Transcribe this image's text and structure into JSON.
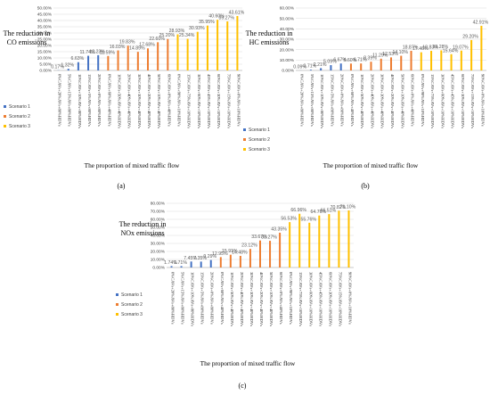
{
  "colors": {
    "scenario1": "#4472C4",
    "scenario2": "#ED7D31",
    "scenario3": "#FFC000",
    "grid": "#d9d9d9",
    "axis": "#bfbfbf"
  },
  "panel_labels": [
    "(a)",
    "(b)",
    "(c)"
  ],
  "chart_data": [
    {
      "type": "bar",
      "panel": "(a)",
      "ylabel": [
        "The reduction in",
        "CO emissions"
      ],
      "xlabel": "The proportion of mixed traffic flow",
      "ylim": [
        0,
        50
      ],
      "yticks": [
        "0.00%",
        "5.00%",
        "10.00%",
        "15.00%",
        "20.00%",
        "25.00%",
        "30.00%",
        "35.00%",
        "40.00%",
        "45.00%",
        "50.00%"
      ],
      "grid": true,
      "legend": "left",
      "legend_labels": [
        "Scenario 1",
        "Scenario 2",
        "Scenario 3"
      ],
      "categories": [
        "0%CAVs+20%AVs+80%HDVs",
        "5%CAVs+15%AVs+80%HDVs",
        "10%CAVs+10%AVs+80%HDVs",
        "15%CAVs+5%AVs+80%HDVs",
        "20%CAVs+0%AVs+80%HDVs",
        "0%CAVs+60%AVs+40%HDVs",
        "10%CAVs+50%AVs+40%HDVs",
        "20%CAVs+40%AVs+40%HDVs",
        "30%CAVs+30%AVs+40%HDVs",
        "40%CAVs+20%AVs+40%HDVs",
        "50%CAVs+10%AVs+40%HDVs",
        "60%CAVs+0%AVs+40%HDVs",
        "0%CAVs+90%AVs+10%HDVs",
        "15%CAVs+75%AVs+10%HDVs",
        "30%CAVs+60%AVs+10%HDVs",
        "45%CAVs+45%AVs+10%HDVs",
        "60%CAVs+30%AVs+10%HDVs",
        "75%CAVs+15%AVs+10%HDVs",
        "90%CAVs+0%AVs+10%HDVs"
      ],
      "values": [
        0.17,
        1.32,
        6.63,
        11.74,
        12.23,
        11.59,
        16.03,
        19.83,
        14.89,
        17.68,
        22.6,
        25.2,
        28.93,
        25.34,
        30.93,
        35.95,
        40.6,
        39.27,
        43.61
      ],
      "labels": [
        "0.17%",
        "1.32%",
        "6.63%",
        "11.74%",
        "12.23%",
        "11.59%",
        "16.03%",
        "19.83%",
        "14.89%",
        "17.68%",
        "22.60%",
        "25.20%",
        "28.93%",
        "25.34%",
        "30.93%",
        "35.95%",
        "40.60%",
        "39.27%",
        "43.61%"
      ],
      "scenario": [
        1,
        1,
        1,
        1,
        1,
        2,
        2,
        2,
        2,
        2,
        2,
        2,
        3,
        3,
        3,
        3,
        3,
        3,
        3
      ]
    },
    {
      "type": "bar",
      "panel": "(b)",
      "ylabel": [
        "The reduction in",
        "HC emissions"
      ],
      "xlabel": "The proportion of mixed traffic flow",
      "ylim": [
        0,
        60
      ],
      "yticks": [
        "0.00%",
        "10.00%",
        "20.00%",
        "30.00%",
        "40.00%",
        "50.00%",
        "60.00%"
      ],
      "grid": true,
      "legend": "left",
      "legend_labels": [
        "Scenario 1",
        "Scenario 2",
        "Scenario 3"
      ],
      "categories": [
        "0%CAVs+20%AVs+80%HDVs",
        "5%CAVs+15%AVs+80%HDVs",
        "10%CAVs+10%AVs+80%HDVs",
        "15%CAVs+5%AVs+80%HDVs",
        "20%CAVs+0%AVs+80%HDVs",
        "0%CAVs+60%AVs+40%HDVs",
        "10%CAVs+50%AVs+40%HDVs",
        "20%CAVs+40%AVs+40%HDVs",
        "30%CAVs+30%AVs+40%HDVs",
        "40%CAVs+20%AVs+40%HDVs",
        "50%CAVs+10%AVs+40%HDVs",
        "60%CAVs+0%AVs+40%HDVs",
        "0%CAVs+90%AVs+10%HDVs",
        "15%CAVs+75%AVs+10%HDVs",
        "30%CAVs+60%AVs+10%HDVs",
        "45%CAVs+45%AVs+10%HDVs",
        "60%CAVs+30%AVs+10%HDVs",
        "75%CAVs+15%AVs+10%HDVs",
        "90%CAVs+0%AVs+10%HDVs"
      ],
      "values": [
        0.09,
        0.71,
        2.21,
        5.09,
        6.67,
        6.6,
        6.71,
        8.39,
        11.29,
        12.53,
        14.1,
        18.87,
        17.46,
        18.83,
        19.28,
        15.64,
        19.07,
        29.2,
        42.91
      ],
      "labels": [
        "0.09%",
        "0.71%",
        "2.21%",
        "5.09%",
        "6.67%",
        "6.60%",
        "6.71%",
        "8.39%",
        "11.29%",
        "12.53%",
        "14.10%",
        "18.87%",
        "17.46%",
        "18.83%",
        "19.28%",
        "15.64%",
        "19.07%",
        "29.20%",
        "42.91%"
      ],
      "scenario": [
        1,
        1,
        1,
        1,
        1,
        2,
        2,
        2,
        2,
        2,
        2,
        2,
        3,
        3,
        3,
        3,
        3,
        3,
        3
      ]
    },
    {
      "type": "bar",
      "panel": "(c)",
      "ylabel": [
        "The reduction in",
        "NOx emissions"
      ],
      "xlabel": "The proportion of mixed traffic flow",
      "ylim": [
        0,
        80
      ],
      "yticks": [
        "0.00%",
        "10.00%",
        "20.00%",
        "30.00%",
        "40.00%",
        "50.00%",
        "60.00%",
        "70.00%",
        "80.00%"
      ],
      "grid": true,
      "legend": "left",
      "legend_labels": [
        "Scenario 1",
        "Scenario 2",
        "Scenario 3"
      ],
      "categories": [
        "0%CAVs+20%AVs+80%HDVs",
        "5%CAVs+15%AVs+80%HDVs",
        "10%CAVs+10%AVs+80%HDVs",
        "15%CAVs+5%AVs+80%HDVs",
        "20%CAVs+0%AVs+80%HDVs",
        "0%CAVs+60%AVs+40%HDVs",
        "10%CAVs+50%AVs+40%HDVs",
        "20%CAVs+40%AVs+40%HDVs",
        "30%CAVs+30%AVs+40%HDVs",
        "40%CAVs+20%AVs+40%HDVs",
        "50%CAVs+10%AVs+40%HDVs",
        "60%CAVs+0%AVs+40%HDVs",
        "0%CAVs+90%AVs+10%HDVs",
        "15%CAVs+75%AVs+10%HDVs",
        "30%CAVs+60%AVs+10%HDVs",
        "45%CAVs+45%AVs+10%HDVs",
        "60%CAVs+30%AVs+10%HDVs",
        "75%CAVs+15%AVs+10%HDVs",
        "90%CAVs+0%AVs+10%HDVs"
      ],
      "values": [
        1.74,
        1.71,
        7.45,
        7.35,
        9.29,
        12.95,
        15.91,
        14.48,
        23.12,
        33.67,
        33.27,
        43.35,
        56.53,
        66.96,
        55.76,
        64.76,
        66.51,
        70.82,
        71.1
      ],
      "labels": [
        "1.74%",
        "1.71%",
        "7.45%",
        "7.35%",
        "9.29%",
        "12.95%",
        "15.91%",
        "14.48%",
        "23.12%",
        "33.67%",
        "33.27%",
        "43.35%",
        "56.53%",
        "66.96%",
        "55.76%",
        "64.76%",
        "66.51%",
        "70.82%",
        "71.10%"
      ],
      "scenario": [
        1,
        1,
        1,
        1,
        1,
        2,
        2,
        2,
        2,
        2,
        2,
        2,
        3,
        3,
        3,
        3,
        3,
        3,
        3
      ]
    }
  ]
}
